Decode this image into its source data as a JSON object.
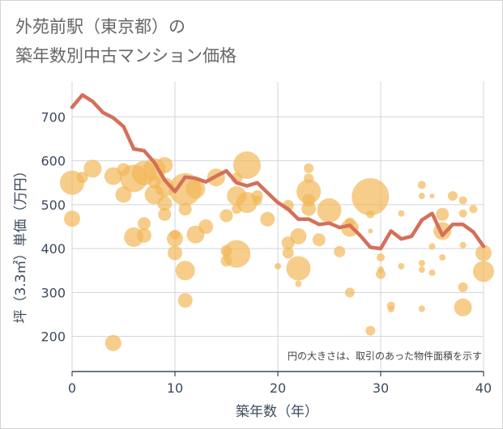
{
  "header": {
    "title_line1": "外苑前駅（東京都）の",
    "title_line2": "築年数別中古マンション価格"
  },
  "chart_data": {
    "type": "scatter",
    "title": "外苑前駅（東京都）の 築年数別中古マンション価格",
    "xlabel": "築年数（年）",
    "ylabel": "坪（3.3㎡）単価（万円）",
    "xlim": [
      0,
      40
    ],
    "ylim": [
      120,
      780
    ],
    "x_ticks": [
      0,
      10,
      20,
      30,
      40
    ],
    "y_ticks": [
      200,
      300,
      400,
      500,
      600,
      700
    ],
    "x_tick_labels": [
      "0",
      "10",
      "20",
      "30",
      "40"
    ],
    "y_tick_labels": [
      "200",
      "300",
      "400",
      "500",
      "600",
      "700"
    ],
    "grid": true,
    "note": "円の大きさは、取引のあった物件面積を示す",
    "colors": {
      "bubble": "#f2b858",
      "line": "#d4705a",
      "grid": "#d0d5de",
      "axis": "#3d4a5c"
    },
    "series": [
      {
        "type": "line",
        "x": [
          0,
          1,
          2,
          3,
          4,
          5,
          6,
          7,
          8,
          9,
          10,
          11,
          12,
          13,
          14,
          15,
          16,
          17,
          18,
          19,
          20,
          21,
          22,
          23,
          24,
          25,
          26,
          27,
          28,
          29,
          30,
          31,
          32,
          33,
          34,
          35,
          36,
          37,
          38,
          39,
          40
        ],
        "y": [
          722,
          750,
          735,
          710,
          698,
          678,
          627,
          623,
          596,
          556,
          530,
          563,
          560,
          552,
          565,
          577,
          550,
          543,
          550,
          527,
          505,
          490,
          467,
          467,
          455,
          458,
          448,
          453,
          430,
          403,
          400,
          440,
          422,
          428,
          465,
          480,
          430,
          455,
          455,
          438,
          405
        ]
      },
      {
        "type": "bubble",
        "points": [
          {
            "x": 0,
            "y": 550,
            "r": 15
          },
          {
            "x": 0,
            "y": 468,
            "r": 10
          },
          {
            "x": 1,
            "y": 562,
            "r": 7
          },
          {
            "x": 2,
            "y": 582,
            "r": 11
          },
          {
            "x": 4,
            "y": 565,
            "r": 11
          },
          {
            "x": 4,
            "y": 185,
            "r": 10
          },
          {
            "x": 5,
            "y": 523,
            "r": 10
          },
          {
            "x": 5,
            "y": 580,
            "r": 8
          },
          {
            "x": 6,
            "y": 560,
            "r": 17
          },
          {
            "x": 6,
            "y": 426,
            "r": 12
          },
          {
            "x": 7,
            "y": 572,
            "r": 15
          },
          {
            "x": 7,
            "y": 457,
            "r": 8
          },
          {
            "x": 7,
            "y": 430,
            "r": 9
          },
          {
            "x": 8,
            "y": 580,
            "r": 14
          },
          {
            "x": 8,
            "y": 523,
            "r": 12
          },
          {
            "x": 8,
            "y": 552,
            "r": 8
          },
          {
            "x": 9,
            "y": 590,
            "r": 10
          },
          {
            "x": 9,
            "y": 540,
            "r": 12
          },
          {
            "x": 9,
            "y": 503,
            "r": 9
          },
          {
            "x": 9,
            "y": 478,
            "r": 8
          },
          {
            "x": 10,
            "y": 423,
            "r": 10
          },
          {
            "x": 10,
            "y": 390,
            "r": 9
          },
          {
            "x": 10,
            "y": 432,
            "r": 6
          },
          {
            "x": 11,
            "y": 535,
            "r": 20
          },
          {
            "x": 11,
            "y": 490,
            "r": 8
          },
          {
            "x": 11,
            "y": 350,
            "r": 12
          },
          {
            "x": 11,
            "y": 282,
            "r": 9
          },
          {
            "x": 12,
            "y": 536,
            "r": 12
          },
          {
            "x": 12,
            "y": 432,
            "r": 11
          },
          {
            "x": 13,
            "y": 450,
            "r": 9
          },
          {
            "x": 14,
            "y": 562,
            "r": 11
          },
          {
            "x": 15,
            "y": 475,
            "r": 8
          },
          {
            "x": 15,
            "y": 395,
            "r": 7
          },
          {
            "x": 15,
            "y": 372,
            "r": 7
          },
          {
            "x": 16,
            "y": 388,
            "r": 17
          },
          {
            "x": 16,
            "y": 520,
            "r": 12
          },
          {
            "x": 16,
            "y": 560,
            "r": 7
          },
          {
            "x": 16,
            "y": 490,
            "r": 6
          },
          {
            "x": 17,
            "y": 590,
            "r": 17
          },
          {
            "x": 17,
            "y": 505,
            "r": 13
          },
          {
            "x": 18,
            "y": 520,
            "r": 7
          },
          {
            "x": 18,
            "y": 510,
            "r": 6
          },
          {
            "x": 19,
            "y": 467,
            "r": 9
          },
          {
            "x": 20,
            "y": 360,
            "r": 4
          },
          {
            "x": 21,
            "y": 413,
            "r": 8
          },
          {
            "x": 21,
            "y": 390,
            "r": 7
          },
          {
            "x": 21,
            "y": 498,
            "r": 7
          },
          {
            "x": 22,
            "y": 428,
            "r": 10
          },
          {
            "x": 22,
            "y": 355,
            "r": 15
          },
          {
            "x": 22,
            "y": 320,
            "r": 4
          },
          {
            "x": 23,
            "y": 530,
            "r": 15
          },
          {
            "x": 23,
            "y": 491,
            "r": 9
          },
          {
            "x": 23,
            "y": 560,
            "r": 6
          },
          {
            "x": 23,
            "y": 583,
            "r": 6
          },
          {
            "x": 23,
            "y": 510,
            "r": 8
          },
          {
            "x": 24,
            "y": 420,
            "r": 8
          },
          {
            "x": 25,
            "y": 487,
            "r": 15
          },
          {
            "x": 26,
            "y": 393,
            "r": 7
          },
          {
            "x": 27,
            "y": 447,
            "r": 11
          },
          {
            "x": 27,
            "y": 460,
            "r": 6
          },
          {
            "x": 27,
            "y": 300,
            "r": 6
          },
          {
            "x": 29,
            "y": 518,
            "r": 23
          },
          {
            "x": 29,
            "y": 478,
            "r": 5
          },
          {
            "x": 29,
            "y": 213,
            "r": 6
          },
          {
            "x": 29,
            "y": 440,
            "r": 3
          },
          {
            "x": 30,
            "y": 380,
            "r": 5
          },
          {
            "x": 30,
            "y": 342,
            "r": 6
          },
          {
            "x": 30,
            "y": 352,
            "r": 4
          },
          {
            "x": 31,
            "y": 270,
            "r": 5
          },
          {
            "x": 31,
            "y": 262,
            "r": 4
          },
          {
            "x": 32,
            "y": 480,
            "r": 4
          },
          {
            "x": 32,
            "y": 360,
            "r": 4
          },
          {
            "x": 34,
            "y": 545,
            "r": 5
          },
          {
            "x": 34,
            "y": 520,
            "r": 4
          },
          {
            "x": 34,
            "y": 367,
            "r": 4
          },
          {
            "x": 34,
            "y": 352,
            "r": 4
          },
          {
            "x": 34,
            "y": 263,
            "r": 4
          },
          {
            "x": 35,
            "y": 520,
            "r": 3
          },
          {
            "x": 35,
            "y": 405,
            "r": 4
          },
          {
            "x": 35,
            "y": 345,
            "r": 4
          },
          {
            "x": 36,
            "y": 478,
            "r": 8
          },
          {
            "x": 36,
            "y": 440,
            "r": 11
          },
          {
            "x": 36,
            "y": 380,
            "r": 4
          },
          {
            "x": 37,
            "y": 520,
            "r": 6
          },
          {
            "x": 38,
            "y": 510,
            "r": 5
          },
          {
            "x": 38,
            "y": 480,
            "r": 5
          },
          {
            "x": 38,
            "y": 312,
            "r": 6
          },
          {
            "x": 38,
            "y": 266,
            "r": 11
          },
          {
            "x": 38,
            "y": 408,
            "r": 4
          },
          {
            "x": 39,
            "y": 490,
            "r": 5
          },
          {
            "x": 40,
            "y": 390,
            "r": 10
          },
          {
            "x": 40,
            "y": 348,
            "r": 13
          }
        ]
      }
    ]
  }
}
